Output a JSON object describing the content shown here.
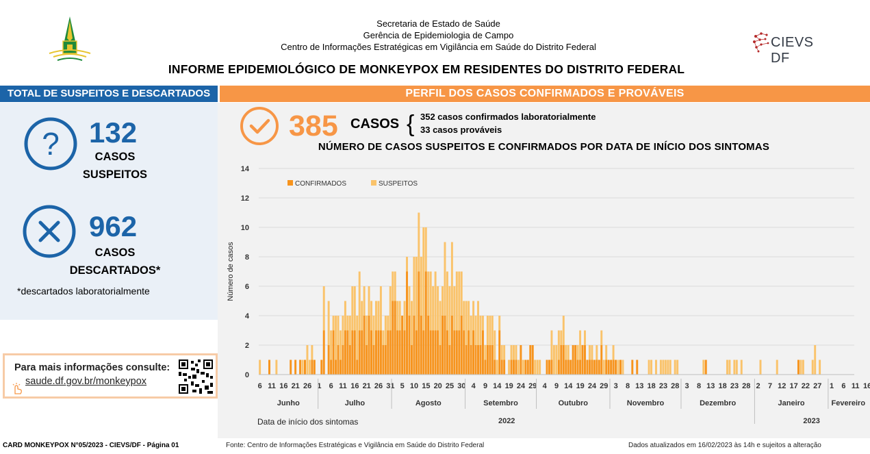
{
  "header": {
    "line1": "Secretaria de Estado de Saúde",
    "line2": "Gerência de Epidemiologia de Campo",
    "line3": "Centro de Informações Estratégicas em Vigilância em Saúde do Distrito Federal",
    "title": "INFORME EPIDEMIOLÓGICO DE MONKEYPOX EM RESIDENTES DO DISTRITO FEDERAL",
    "logo_right": "CIEVS DF"
  },
  "left_panel": {
    "header": "TOTAL DE SUSPEITOS E DESCARTADOS",
    "suspects_value": "132",
    "suspects_label1": "CASOS",
    "suspects_label2": "SUSPEITOS",
    "discarded_value": "962",
    "discarded_label1": "CASOS",
    "discarded_label2": "DESCARTADOS*",
    "footnote": "*descartados laboratorialmente",
    "info_title": "Para mais informações consulte:",
    "info_link": "saude.df.gov.br/monkeypox"
  },
  "right_panel": {
    "header": "PERFIL DOS CASOS CONFIRMADOS E PROVÁVEIS",
    "total_value": "385",
    "total_label": "CASOS",
    "breakdown1": "352 casos confirmados laboratorialmente",
    "breakdown2": "33 casos prováveis",
    "chart_title": "NÚMERO DE CASOS SUSPEITOS E CONFIRMADOS POR DATA DE INÍCIO DOS SINTOMAS"
  },
  "colors": {
    "blue": "#1c64a8",
    "orange": "#f79646",
    "confirmed": "#f7941d",
    "suspected": "#fac36b"
  },
  "chart_data": {
    "type": "bar",
    "stacked": true,
    "ylabel": "Número de casos",
    "xlabel": "Data de início dos sintomas",
    "ylim": [
      0,
      14
    ],
    "yticks": [
      0,
      2,
      4,
      6,
      8,
      10,
      12,
      14
    ],
    "grid": true,
    "legend_position": "top-left",
    "day_labels": [
      {
        "day": 0,
        "label": "6"
      },
      {
        "day": 5,
        "label": "11"
      },
      {
        "day": 10,
        "label": "16"
      },
      {
        "day": 15,
        "label": "21"
      },
      {
        "day": 20,
        "label": "26"
      },
      {
        "day": 25,
        "label": "1"
      },
      {
        "day": 30,
        "label": "6"
      },
      {
        "day": 35,
        "label": "11"
      },
      {
        "day": 40,
        "label": "16"
      },
      {
        "day": 45,
        "label": "21"
      },
      {
        "day": 50,
        "label": "26"
      },
      {
        "day": 55,
        "label": "31"
      },
      {
        "day": 60,
        "label": "5"
      },
      {
        "day": 65,
        "label": "10"
      },
      {
        "day": 70,
        "label": "15"
      },
      {
        "day": 75,
        "label": "20"
      },
      {
        "day": 80,
        "label": "25"
      },
      {
        "day": 85,
        "label": "30"
      },
      {
        "day": 90,
        "label": "4"
      },
      {
        "day": 95,
        "label": "9"
      },
      {
        "day": 100,
        "label": "14"
      },
      {
        "day": 105,
        "label": "19"
      },
      {
        "day": 110,
        "label": "24"
      },
      {
        "day": 115,
        "label": "29"
      },
      {
        "day": 120,
        "label": "4"
      },
      {
        "day": 125,
        "label": "9"
      },
      {
        "day": 130,
        "label": "14"
      },
      {
        "day": 135,
        "label": "19"
      },
      {
        "day": 140,
        "label": "24"
      },
      {
        "day": 145,
        "label": "29"
      },
      {
        "day": 150,
        "label": "3"
      },
      {
        "day": 155,
        "label": "8"
      },
      {
        "day": 160,
        "label": "13"
      },
      {
        "day": 165,
        "label": "18"
      },
      {
        "day": 170,
        "label": "23"
      },
      {
        "day": 175,
        "label": "28"
      },
      {
        "day": 180,
        "label": "3"
      },
      {
        "day": 185,
        "label": "8"
      },
      {
        "day": 190,
        "label": "13"
      },
      {
        "day": 195,
        "label": "18"
      },
      {
        "day": 200,
        "label": "23"
      },
      {
        "day": 205,
        "label": "28"
      },
      {
        "day": 210,
        "label": "2"
      },
      {
        "day": 215,
        "label": "7"
      },
      {
        "day": 220,
        "label": "12"
      },
      {
        "day": 225,
        "label": "17"
      },
      {
        "day": 230,
        "label": "22"
      },
      {
        "day": 235,
        "label": "27"
      },
      {
        "day": 241,
        "label": "1"
      },
      {
        "day": 246,
        "label": "6"
      },
      {
        "day": 251,
        "label": "11"
      },
      {
        "day": 256,
        "label": "16"
      }
    ],
    "months": [
      {
        "label": "Junho",
        "start": 0,
        "end": 25
      },
      {
        "label": "Julho",
        "start": 25,
        "end": 56
      },
      {
        "label": "Agosto",
        "start": 56,
        "end": 87
      },
      {
        "label": "Setembro",
        "start": 87,
        "end": 117
      },
      {
        "label": "Outubro",
        "start": 117,
        "end": 148
      },
      {
        "label": "Novembro",
        "start": 148,
        "end": 178
      },
      {
        "label": "Dezembro",
        "start": 178,
        "end": 209
      },
      {
        "label": "Janeiro",
        "start": 209,
        "end": 240
      },
      {
        "label": "Fevereiro",
        "start": 240,
        "end": 257
      }
    ],
    "years": [
      {
        "label": "2022",
        "start": 0,
        "end": 209
      },
      {
        "label": "2023",
        "start": 209,
        "end": 257
      }
    ],
    "series": [
      {
        "name": "CONFIRMADOS",
        "values": [
          0,
          0,
          0,
          0,
          1,
          0,
          0,
          0,
          0,
          0,
          0,
          0,
          0,
          1,
          0,
          1,
          0,
          1,
          0,
          1,
          0,
          0,
          1,
          1,
          0,
          0,
          1,
          3,
          0,
          2,
          1,
          3,
          1,
          2,
          1,
          2,
          3,
          3,
          2,
          3,
          3,
          1,
          3,
          3,
          4,
          2,
          4,
          3,
          2,
          3,
          3,
          3,
          2,
          2,
          3,
          3,
          5,
          5,
          3,
          3,
          4,
          3,
          7,
          4,
          2,
          4,
          3,
          7,
          4,
          3,
          7,
          4,
          3,
          3,
          3,
          3,
          2,
          4,
          4,
          3,
          2,
          4,
          3,
          3,
          3,
          4,
          3,
          2,
          3,
          2,
          3,
          2,
          2,
          2,
          3,
          1,
          2,
          2,
          2,
          1,
          0,
          3,
          1,
          1,
          0,
          0,
          1,
          1,
          1,
          0,
          2,
          0,
          1,
          1,
          2,
          2,
          0,
          0,
          0,
          0,
          0,
          1,
          1,
          1,
          0,
          0,
          1,
          2,
          2,
          1,
          1,
          1,
          2,
          2,
          1,
          1,
          2,
          2,
          1,
          1,
          1,
          1,
          1,
          1,
          2,
          0,
          1,
          1,
          1,
          1,
          1,
          0,
          1,
          0,
          0,
          0,
          0,
          1,
          0,
          1,
          0,
          0,
          0,
          0,
          0,
          0,
          0,
          0,
          0,
          0,
          0,
          0,
          0,
          0,
          0,
          0,
          0,
          0,
          0,
          0,
          0,
          0,
          0,
          0,
          0,
          0,
          0,
          0,
          1,
          0,
          0,
          0,
          0,
          0,
          0,
          0,
          0,
          0,
          0,
          0,
          0,
          0,
          0,
          0,
          0,
          0,
          0,
          0,
          0,
          0,
          0,
          0,
          0,
          0,
          0,
          0,
          0,
          0,
          0,
          0,
          0,
          0,
          0,
          0,
          0,
          0,
          0,
          1,
          0,
          0,
          0,
          0,
          0,
          0,
          0,
          0,
          0,
          0,
          0,
          0,
          0,
          0,
          0,
          0,
          0,
          0,
          0,
          0,
          0,
          0,
          0
        ]
      },
      {
        "name": "SUSPEITOS",
        "values": [
          1,
          0,
          0,
          0,
          0,
          0,
          0,
          1,
          0,
          0,
          0,
          0,
          0,
          0,
          0,
          0,
          0,
          0,
          1,
          0,
          2,
          1,
          1,
          0,
          0,
          0,
          0,
          3,
          0,
          3,
          2,
          1,
          3,
          2,
          2,
          2,
          2,
          1,
          2,
          3,
          3,
          3,
          4,
          2,
          2,
          2,
          2,
          2,
          2,
          2,
          2,
          3,
          1,
          2,
          1,
          3,
          2,
          2,
          2,
          2,
          0,
          2,
          1,
          2,
          3,
          4,
          5,
          4,
          4,
          7,
          3,
          3,
          4,
          3,
          4,
          3,
          3,
          2,
          5,
          4,
          4,
          5,
          3,
          4,
          4,
          3,
          2,
          3,
          2,
          2,
          2,
          2,
          3,
          2,
          1,
          1,
          2,
          2,
          2,
          2,
          1,
          1,
          1,
          1,
          0,
          1,
          1,
          1,
          1,
          1,
          0,
          1,
          0,
          0,
          0,
          0,
          1,
          1,
          1,
          0,
          0,
          0,
          0,
          2,
          2,
          2,
          2,
          1,
          2,
          1,
          1,
          0,
          0,
          0,
          1,
          2,
          0,
          1,
          0,
          1,
          1,
          0,
          1,
          0,
          1,
          1,
          1,
          0,
          0,
          1,
          0,
          1,
          0,
          1,
          0,
          0,
          0,
          0,
          0,
          0,
          0,
          0,
          0,
          0,
          1,
          1,
          0,
          1,
          0,
          1,
          1,
          1,
          1,
          1,
          0,
          1,
          1,
          0,
          0,
          0,
          0,
          0,
          0,
          0,
          0,
          0,
          0,
          1,
          0,
          0,
          0,
          0,
          0,
          0,
          0,
          0,
          0,
          1,
          1,
          0,
          1,
          1,
          0,
          1,
          0,
          0,
          0,
          0,
          0,
          0,
          0,
          1,
          0,
          0,
          0,
          0,
          0,
          0,
          1,
          0,
          0,
          0,
          0,
          0,
          0,
          0,
          0,
          0,
          1,
          1,
          0,
          0,
          0,
          1,
          2,
          0,
          1,
          0,
          0,
          0,
          0,
          0,
          0,
          0,
          0,
          0,
          0,
          0,
          0,
          0,
          0,
          0,
          0,
          0,
          0,
          0,
          0,
          0,
          0,
          0,
          0,
          0,
          0,
          0,
          0,
          0,
          0,
          0,
          0
        ]
      }
    ]
  },
  "footer": {
    "left": "CARD MONKEYPOX N°05/2023 - CIEVS/DF - Página 01",
    "mid": "Fonte: Centro de Informações Estratégicas e Vigilância em Saúde do Distrito Federal",
    "right": "Dados atualizados em 16/02/2023 às 14h e sujeitos a alteração"
  }
}
